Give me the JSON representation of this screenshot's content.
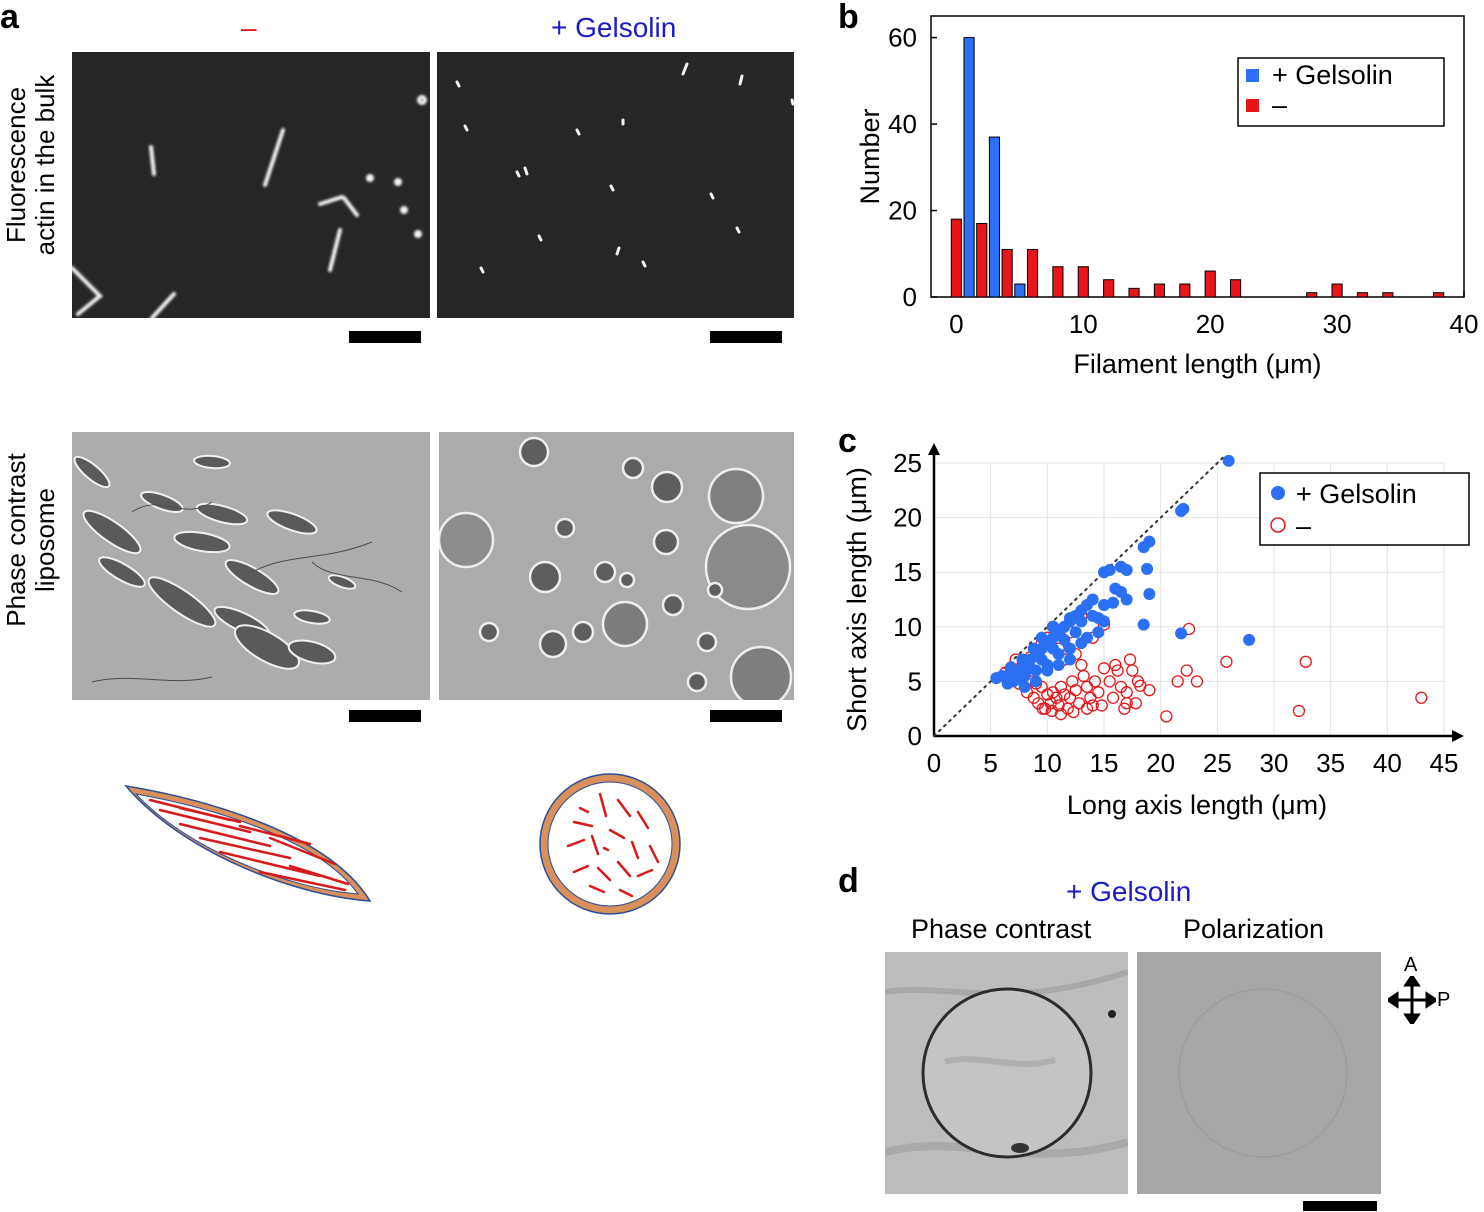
{
  "panel_a": {
    "letter": "a",
    "col_minus": "–",
    "col_gelsolin": "+ Gelsolin",
    "row1_label_line1": "Fluorescence",
    "row1_label_line2": "actin in the bulk",
    "row2_label_line1": "Phase contrast",
    "row2_label_line2": "liposome",
    "colors": {
      "minus": "#e8151b",
      "gelsolin": "#1a1acb",
      "membrane": "#d9905a",
      "actin": "#d81a1a"
    }
  },
  "panel_d": {
    "letter": "d",
    "condition": "+ Gelsolin",
    "label_phase": "Phase contrast",
    "label_polarization": "Polarization",
    "axis_a": "A",
    "axis_p": "P"
  },
  "chart_data": [
    {
      "panel": "b",
      "type": "bar",
      "xlabel": "Filament length (μm)",
      "ylabel": "Number",
      "xlim": [
        -2,
        40
      ],
      "ylim": [
        0,
        65
      ],
      "xticks": [
        0,
        10,
        20,
        30,
        40
      ],
      "yticks": [
        0,
        20,
        40,
        60
      ],
      "legend_position": "top-right",
      "series": [
        {
          "name": "+ Gelsolin",
          "color": "#2b6ff2",
          "x": [
            1,
            3,
            5
          ],
          "values": [
            60,
            37,
            3
          ]
        },
        {
          "name": "–",
          "color": "#e8151b",
          "x": [
            0,
            2,
            4,
            6,
            8,
            10,
            12,
            14,
            16,
            18,
            20,
            22,
            24,
            26,
            28,
            30,
            32,
            34,
            36,
            38
          ],
          "values": [
            18,
            17,
            11,
            11,
            7,
            7,
            4,
            2,
            3,
            3,
            6,
            4,
            0,
            0,
            1,
            3,
            1,
            1,
            0,
            1
          ]
        }
      ]
    },
    {
      "panel": "c",
      "type": "scatter",
      "xlabel": "Long axis length (μm)",
      "ylabel": "Short axis length (μm)",
      "xlim": [
        0,
        45
      ],
      "ylim": [
        0,
        25
      ],
      "xticks": [
        0,
        5,
        10,
        15,
        20,
        25,
        30,
        35,
        40,
        45
      ],
      "yticks": [
        0,
        5,
        10,
        15,
        20,
        25
      ],
      "grid": true,
      "diagonal_line": "y = x (dotted)",
      "legend_position": "top-right",
      "series": [
        {
          "name": "+ Gelsolin",
          "marker": "filled-circle",
          "color": "#2b6ff2",
          "points": [
            [
              26,
              25.2
            ],
            [
              22,
              20.8
            ],
            [
              21.8,
              20.6
            ],
            [
              19,
              17.8
            ],
            [
              18.5,
              17.3
            ],
            [
              16.5,
              15.5
            ],
            [
              15.5,
              15.2
            ],
            [
              15,
              15
            ],
            [
              17,
              15.2
            ],
            [
              18.8,
              15.3
            ],
            [
              19,
              13
            ],
            [
              16,
              13.5
            ],
            [
              17,
              12.5
            ],
            [
              13.5,
              12
            ],
            [
              13,
              11.5
            ],
            [
              12.5,
              11
            ],
            [
              12,
              10.5
            ],
            [
              11.5,
              10
            ],
            [
              11,
              9.5
            ],
            [
              10.5,
              9
            ],
            [
              10,
              8.5
            ],
            [
              9.5,
              8
            ],
            [
              9,
              7.5
            ],
            [
              8.5,
              7
            ],
            [
              8,
              6.5
            ],
            [
              7.5,
              6
            ],
            [
              7,
              6
            ],
            [
              6.5,
              5.5
            ],
            [
              6,
              5.5
            ],
            [
              5.5,
              5.3
            ],
            [
              14,
              11
            ],
            [
              15,
              10.5
            ],
            [
              14.5,
              9.5
            ],
            [
              13.5,
              9
            ],
            [
              12,
              8
            ],
            [
              11,
              7.5
            ],
            [
              10,
              6.5
            ],
            [
              9,
              6
            ],
            [
              8,
              5.5
            ],
            [
              7,
              5
            ],
            [
              12.5,
              9.5
            ],
            [
              13,
              10.5
            ],
            [
              11.5,
              8.8
            ],
            [
              10.5,
              8
            ],
            [
              9.5,
              7
            ],
            [
              8.5,
              6.2
            ],
            [
              7.5,
              5.2
            ],
            [
              6.5,
              4.8
            ],
            [
              14,
              12.5
            ],
            [
              15,
              12
            ],
            [
              13,
              8.5
            ],
            [
              12,
              7
            ],
            [
              11,
              6.5
            ],
            [
              10,
              6
            ],
            [
              9,
              5
            ],
            [
              8,
              4.5
            ],
            [
              21.8,
              9.4
            ],
            [
              27.8,
              8.8
            ],
            [
              18.5,
              10.2
            ],
            [
              16.5,
              13.2
            ],
            [
              15.8,
              12.2
            ],
            [
              14.5,
              10.8
            ],
            [
              12,
              10.8
            ],
            [
              10.5,
              10
            ],
            [
              9.5,
              9
            ],
            [
              8.8,
              8
            ],
            [
              7.8,
              7
            ],
            [
              6.8,
              6.3
            ]
          ]
        },
        {
          "name": "–",
          "marker": "open-circle",
          "color": "#e8151b",
          "points": [
            [
              43,
              3.5
            ],
            [
              32.2,
              2.3
            ],
            [
              32.8,
              6.8
            ],
            [
              25.8,
              6.8
            ],
            [
              23.2,
              5
            ],
            [
              22.3,
              6
            ],
            [
              21.5,
              5
            ],
            [
              22.5,
              9.8
            ],
            [
              20.5,
              1.8
            ],
            [
              18.2,
              4.6
            ],
            [
              17.5,
              6
            ],
            [
              17.3,
              7
            ],
            [
              17,
              3
            ],
            [
              16.8,
              2.5
            ],
            [
              16.5,
              4.5
            ],
            [
              16.2,
              6
            ],
            [
              15.5,
              5
            ],
            [
              15,
              6.2
            ],
            [
              14.5,
              4
            ],
            [
              14.2,
              5
            ],
            [
              14,
              2.8
            ],
            [
              13.8,
              3.5
            ],
            [
              13.5,
              4.5
            ],
            [
              13.2,
              5.5
            ],
            [
              13,
              6.5
            ],
            [
              12.8,
              3
            ],
            [
              12.5,
              4.2
            ],
            [
              12.2,
              5
            ],
            [
              12,
              3.5
            ],
            [
              11.8,
              2.5
            ],
            [
              11.5,
              3.8
            ],
            [
              11.2,
              4.5
            ],
            [
              11,
              2.8
            ],
            [
              10.8,
              3.5
            ],
            [
              10.5,
              4
            ],
            [
              10.3,
              3
            ],
            [
              10,
              3.8
            ],
            [
              9.8,
              2.5
            ],
            [
              9.5,
              4.5
            ],
            [
              9.2,
              3
            ],
            [
              9,
              4.8
            ],
            [
              8.8,
              3.5
            ],
            [
              8.5,
              5
            ],
            [
              8.2,
              4
            ],
            [
              8,
              5.5
            ],
            [
              7.8,
              6.5
            ],
            [
              7.5,
              4.8
            ],
            [
              7.2,
              7
            ],
            [
              7,
              5.2
            ],
            [
              6.8,
              6
            ],
            [
              6.5,
              5
            ],
            [
              6.3,
              5.8
            ],
            [
              10.5,
              10
            ],
            [
              10,
              9
            ],
            [
              11,
              8
            ],
            [
              12,
              9.5
            ],
            [
              13,
              11
            ],
            [
              11.5,
              7
            ],
            [
              12.5,
              7.5
            ],
            [
              14,
              9
            ],
            [
              15,
              10.2
            ],
            [
              9.5,
              8.5
            ],
            [
              8.5,
              7.2
            ],
            [
              16,
              6.5
            ],
            [
              17,
              4
            ],
            [
              18,
              5
            ],
            [
              19,
              4.2
            ],
            [
              17.8,
              3
            ],
            [
              15.8,
              3.5
            ],
            [
              14.8,
              2.8
            ],
            [
              13.5,
              2.5
            ],
            [
              12.3,
              2.2
            ],
            [
              11.2,
              2
            ],
            [
              10.4,
              2.3
            ],
            [
              9.6,
              2.5
            ]
          ]
        }
      ]
    }
  ]
}
